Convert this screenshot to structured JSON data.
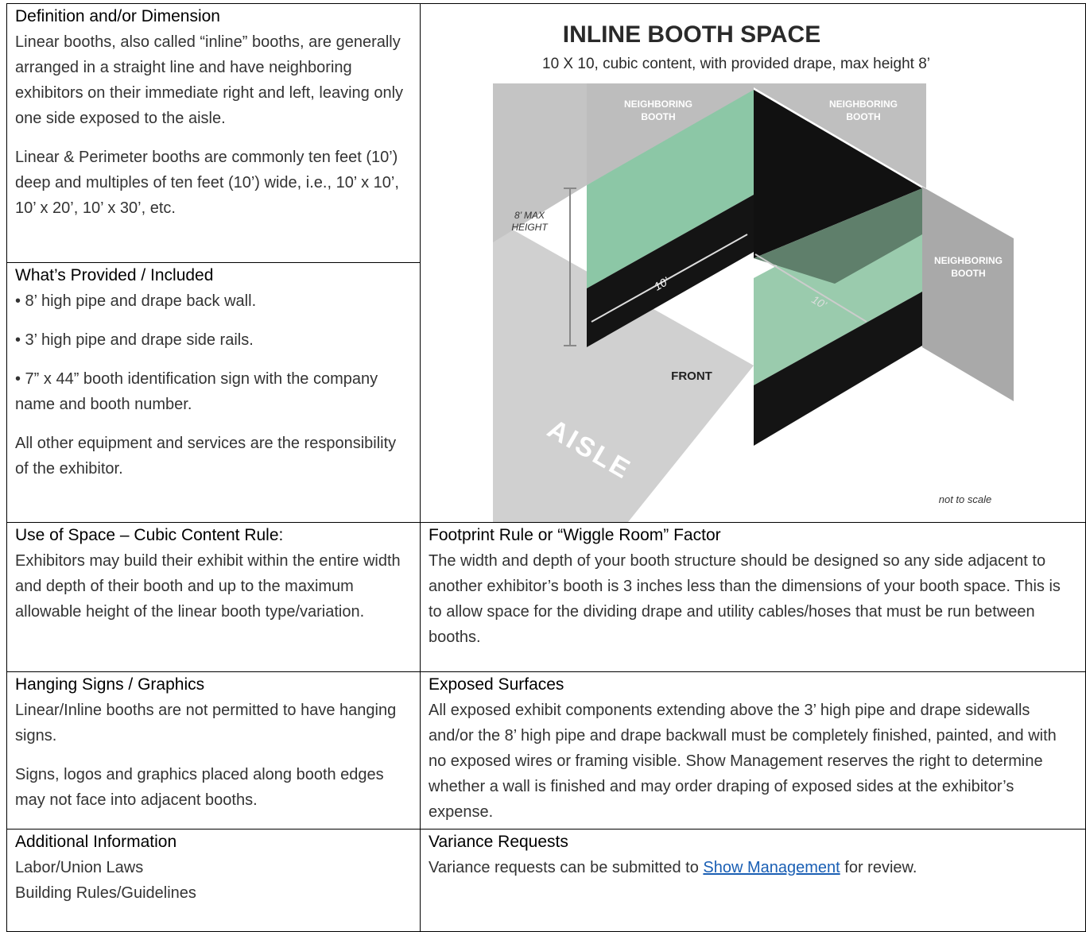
{
  "definition": {
    "heading": "Definition and/or Dimension",
    "paragraphs": [
      "Linear booths, also called “inline” booths, are generally arranged in a straight line and have neighboring exhibitors on their immediate right and left, leaving only one side exposed to the aisle.",
      "Linear & Perimeter booths are commonly ten feet (10’) deep and multiples of ten feet (10’) wide, i.e., 10’ x 10’, 10’ x 20’, 10’ x 30’, etc."
    ]
  },
  "provided": {
    "heading": "What’s Provided / Included",
    "paragraphs": [
      "• 8’ high pipe and drape back wall.",
      "• 3’ high pipe and drape side rails.",
      "• 7” x 44” booth identification sign with the company name and booth number.",
      "All other equipment and services are the responsibility of the exhibitor."
    ]
  },
  "diagram": {
    "title": "INLINE BOOTH SPACE",
    "subtitle": "10 X 10, cubic content, with provided drape, max height 8’",
    "neighbor_labels": [
      [
        "NEIGHBORING",
        "BOOTH"
      ],
      [
        "NEIGHBORING",
        "BOOTH"
      ],
      [
        "NEIGHBORING",
        "BOOTH"
      ]
    ],
    "height_label": [
      "8’ MAX",
      "HEIGHT"
    ],
    "width_label": "10’",
    "depth_label": "10’",
    "front_label": "FRONT",
    "aisle_label": "AISLE",
    "scale_note": "not to scale"
  },
  "use_of_space": {
    "heading": "Use of Space – Cubic Content Rule:",
    "paragraphs": [
      "Exhibitors may build their exhibit within the entire width and depth of their booth and up to the maximum allowable height of the linear booth type/variation."
    ]
  },
  "footprint": {
    "heading": "Footprint Rule or “Wiggle Room” Factor",
    "paragraphs": [
      "The width and depth of your booth structure should be designed so any side adjacent to another exhibitor’s booth is 3 inches less than the dimensions of your booth space. This is to allow space for the dividing drape and utility cables/hoses that must be run between booths."
    ]
  },
  "hanging_signs": {
    "heading": "Hanging Signs / Graphics",
    "paragraphs": [
      "Linear/Inline booths are not permitted to have hanging signs.",
      "Signs, logos and graphics placed along booth edges may not face into adjacent booths."
    ]
  },
  "exposed_surfaces": {
    "heading": "Exposed Surfaces",
    "paragraphs": [
      "All exposed exhibit components extending above the 3’ high pipe and drape sidewalls and/or the 8’ high pipe and drape backwall must be completely finished, painted, and with no exposed wires or framing visible. Show Management reserves the right to determine whether a wall is finished and may order draping of exposed sides at the exhibitor’s expense."
    ]
  },
  "additional_info": {
    "heading": "Additional Information",
    "lines": [
      "Labor/Union Laws",
      "Building Rules/Guidelines"
    ]
  },
  "variance": {
    "heading": "Variance Requests",
    "text_before": "Variance requests can be submitted to",
    "link": "Show Management",
    "text_after": "for review."
  }
}
